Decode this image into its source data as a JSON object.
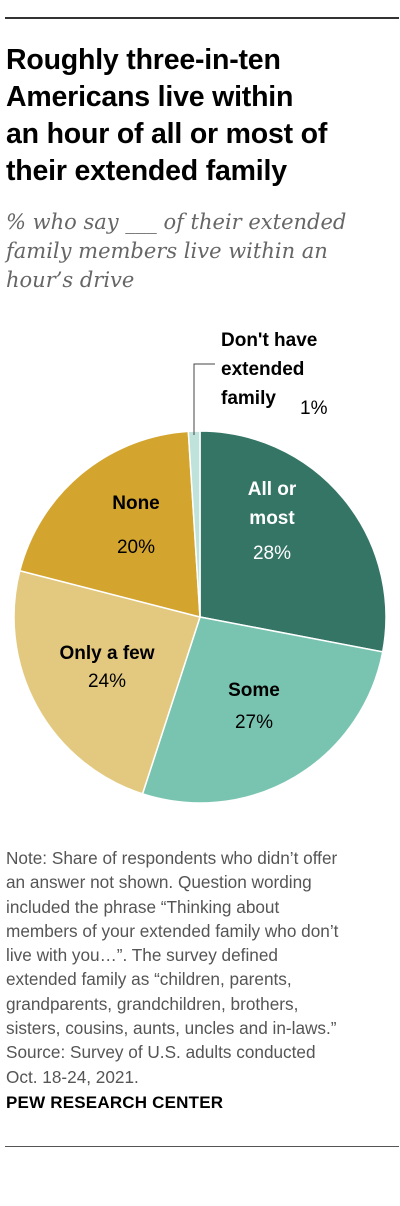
{
  "title_lines": [
    "Roughly three-in-ten",
    "Americans live within",
    "an hour of all or most of",
    "their extended family"
  ],
  "subtitle_lines": [
    "% who say ___ of their extended",
    "family members live within an",
    "hour’s drive"
  ],
  "chart_data": {
    "type": "pie",
    "slices": [
      {
        "label": "All or most",
        "label_lines": [
          "All or",
          "most"
        ],
        "value": 28,
        "value_label": "28%",
        "color": "#357566",
        "label_color": "#ffffff"
      },
      {
        "label": "Some",
        "label_lines": [
          "Some"
        ],
        "value": 27,
        "value_label": "27%",
        "color": "#79c4b0",
        "label_color": "#000000"
      },
      {
        "label": "Only a few",
        "label_lines": [
          "Only a few"
        ],
        "value": 24,
        "value_label": "24%",
        "color": "#e3c97f",
        "label_color": "#000000"
      },
      {
        "label": "None",
        "label_lines": [
          "None"
        ],
        "value": 20,
        "value_label": "20%",
        "color": "#d3a52f",
        "label_color": "#000000"
      },
      {
        "label": "Don't have extended family",
        "label_lines": [
          "Don't have",
          "extended",
          "family"
        ],
        "value": 1,
        "value_label": "1%",
        "color": "#bfe2da",
        "label_color": "#000000"
      }
    ]
  },
  "note_lines": [
    "Note: Share of respondents who didn’t offer",
    "an answer not shown. Question wording",
    "included the phrase “Thinking about",
    "members of your extended family who don’t",
    "live with you…”. The survey defined",
    "extended family as “children, parents,",
    "grandparents, grandchildren, brothers,",
    "sisters, cousins, aunts, uncles and in-laws.”",
    "Source: Survey of U.S. adults conducted",
    "Oct. 18-24, 2021."
  ],
  "brand": "PEW RESEARCH CENTER"
}
